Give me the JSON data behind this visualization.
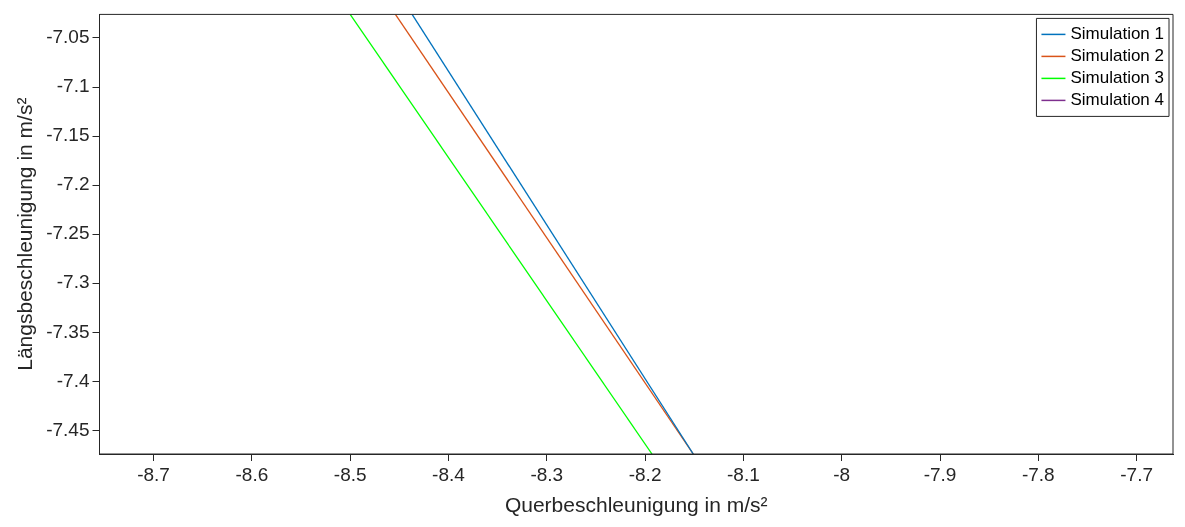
{
  "chart_data": {
    "type": "line",
    "xlabel": "Querbeschleunigung in m/s²",
    "ylabel": "Längsbeschleunigung in m/s²",
    "xlim": [
      -8.755,
      -7.663
    ],
    "xticks": [
      -8.7,
      -8.6,
      -8.5,
      -8.4,
      -8.3,
      -8.2,
      -8.1,
      -8,
      -7.9,
      -7.8,
      -7.7
    ],
    "ylim": [
      -7.474,
      -7.026
    ],
    "yticks": [
      -7.45,
      -7.4,
      -7.35,
      -7.3,
      -7.25,
      -7.2,
      -7.15,
      -7.1,
      -7.05
    ],
    "grid": false,
    "legend": "top right",
    "marker": "none",
    "line_style": "solid",
    "series": [
      {
        "name": "Simulation 1",
        "color": "#0072bd",
        "x": [
          -8.437,
          -8.151
        ],
        "values": [
          -7.026,
          -7.474
        ]
      },
      {
        "name": "Simulation 2",
        "color": "#d95319",
        "x": [
          -8.454,
          -8.151
        ],
        "values": [
          -7.026,
          -7.474
        ]
      },
      {
        "name": "Simulation 3",
        "color": "#00ff00",
        "x": [
          -8.5,
          -8.193
        ],
        "values": [
          -7.026,
          -7.474
        ]
      },
      {
        "name": "Simulation 4",
        "color": "#7e2f8e",
        "x": [
          null,
          null
        ],
        "values": [
          null,
          null
        ]
      }
    ]
  }
}
